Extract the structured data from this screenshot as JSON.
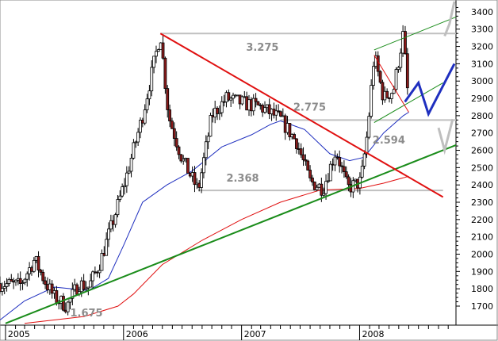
{
  "chart_data": {
    "type": "candlestick",
    "title": "",
    "xlabel": "",
    "ylabel": "",
    "x_ticks": [
      "2005",
      "2006",
      "2007",
      "2008"
    ],
    "y_ticks": [
      1700,
      1800,
      1900,
      2000,
      2100,
      2200,
      2300,
      2400,
      2500,
      2600,
      2700,
      2800,
      2900,
      3000,
      3100,
      3200,
      3300,
      3400
    ],
    "ylim": [
      1590,
      3450
    ],
    "xlim": [
      "2004-12-15",
      "2008-10-25"
    ],
    "y_axis_position": "right",
    "grid": false,
    "series": [
      {
        "kind": "candlestick",
        "up_color": "#ffffff",
        "down_color": "#8b1a1a",
        "approx_path": [
          {
            "date": "2004-12-15",
            "value": 1830
          },
          {
            "date": "2005-02-15",
            "value": 1820
          },
          {
            "date": "2005-04-01",
            "value": 1970
          },
          {
            "date": "2005-05-01",
            "value": 1850
          },
          {
            "date": "2005-06-01",
            "value": 1750
          },
          {
            "date": "2005-07-10",
            "value": 1700
          },
          {
            "date": "2005-08-15",
            "value": 1830
          },
          {
            "date": "2005-09-15",
            "value": 1810
          },
          {
            "date": "2005-10-20",
            "value": 1950
          },
          {
            "date": "2005-12-01",
            "value": 2200
          },
          {
            "date": "2006-01-10",
            "value": 2450
          },
          {
            "date": "2006-03-01",
            "value": 2800
          },
          {
            "date": "2006-04-25",
            "value": 3275
          },
          {
            "date": "2006-05-20",
            "value": 2800
          },
          {
            "date": "2006-07-01",
            "value": 2550
          },
          {
            "date": "2006-08-20",
            "value": 2368
          },
          {
            "date": "2006-10-01",
            "value": 2800
          },
          {
            "date": "2006-11-15",
            "value": 2900
          },
          {
            "date": "2007-01-10",
            "value": 2870
          },
          {
            "date": "2007-03-01",
            "value": 2850
          },
          {
            "date": "2007-05-01",
            "value": 2780
          },
          {
            "date": "2007-06-20",
            "value": 2650
          },
          {
            "date": "2007-08-01",
            "value": 2420
          },
          {
            "date": "2007-09-10",
            "value": 2380
          },
          {
            "date": "2007-10-20",
            "value": 2600
          },
          {
            "date": "2007-11-25",
            "value": 2380
          },
          {
            "date": "2008-01-05",
            "value": 2420
          },
          {
            "date": "2008-01-25",
            "value": 2700
          },
          {
            "date": "2008-02-15",
            "value": 3150
          },
          {
            "date": "2008-03-15",
            "value": 2900
          },
          {
            "date": "2008-04-15",
            "value": 2950
          },
          {
            "date": "2008-05-15",
            "value": 3275
          },
          {
            "date": "2008-06-01",
            "value": 2850
          }
        ]
      },
      {
        "kind": "moving_average",
        "color": "#1f2fbf",
        "points": [
          {
            "date": "2004-12-15",
            "value": 1620
          },
          {
            "date": "2005-03-01",
            "value": 1730
          },
          {
            "date": "2005-06-01",
            "value": 1810
          },
          {
            "date": "2005-09-15",
            "value": 1790
          },
          {
            "date": "2005-11-15",
            "value": 1860
          },
          {
            "date": "2006-01-01",
            "value": 2050
          },
          {
            "date": "2006-03-01",
            "value": 2300
          },
          {
            "date": "2006-05-15",
            "value": 2400
          },
          {
            "date": "2006-08-01",
            "value": 2480
          },
          {
            "date": "2006-11-01",
            "value": 2620
          },
          {
            "date": "2007-02-01",
            "value": 2690
          },
          {
            "date": "2007-04-01",
            "value": 2750
          },
          {
            "date": "2007-05-01",
            "value": 2770
          },
          {
            "date": "2007-07-15",
            "value": 2720
          },
          {
            "date": "2007-10-01",
            "value": 2580
          },
          {
            "date": "2007-12-01",
            "value": 2540
          },
          {
            "date": "2008-01-15",
            "value": 2560
          },
          {
            "date": "2008-03-15",
            "value": 2700
          },
          {
            "date": "2008-05-15",
            "value": 2800
          },
          {
            "date": "2008-06-01",
            "value": 2820
          }
        ]
      },
      {
        "kind": "moving_average",
        "color": "#e01010",
        "points": [
          {
            "date": "2005-03-01",
            "value": 1600
          },
          {
            "date": "2005-09-01",
            "value": 1640
          },
          {
            "date": "2005-12-15",
            "value": 1700
          },
          {
            "date": "2006-02-01",
            "value": 1770
          },
          {
            "date": "2006-05-01",
            "value": 1940
          },
          {
            "date": "2006-09-01",
            "value": 2080
          },
          {
            "date": "2007-01-01",
            "value": 2200
          },
          {
            "date": "2007-05-01",
            "value": 2300
          },
          {
            "date": "2007-09-01",
            "value": 2370
          },
          {
            "date": "2008-01-01",
            "value": 2380
          },
          {
            "date": "2008-03-15",
            "value": 2410
          },
          {
            "date": "2008-06-01",
            "value": 2450
          }
        ]
      }
    ],
    "trend_lines": [
      {
        "name": "uptrend",
        "color": "#1a8c1a",
        "from": {
          "date": "2005-01-01",
          "value": 1600
        },
        "to": {
          "date": "2008-10-25",
          "value": 2630
        }
      },
      {
        "name": "downtrend",
        "color": "#e01010",
        "from": {
          "date": "2006-04-25",
          "value": 3275
        },
        "to": {
          "date": "2008-09-15",
          "value": 2330
        }
      },
      {
        "name": "channel_upper",
        "color": "#1a8c1a",
        "from": {
          "date": "2008-02-15",
          "value": 3180
        },
        "to": {
          "date": "2008-10-25",
          "value": 3370
        }
      },
      {
        "name": "channel_lower",
        "color": "#1a8c1a",
        "from": {
          "date": "2008-02-15",
          "value": 2760
        },
        "to": {
          "date": "2008-09-15",
          "value": 2990
        }
      },
      {
        "name": "wedge_inner",
        "color": "#e01010",
        "from": {
          "date": "2008-02-15",
          "value": 3150
        },
        "to": {
          "date": "2008-06-01",
          "value": 2820
        }
      }
    ],
    "levels": [
      {
        "value": 3275,
        "label": "3.275",
        "from": "2006-04-25",
        "to": "2008-10-25",
        "color": "#c0c0c0"
      },
      {
        "value": 2775,
        "label": "2.775",
        "from": "2007-05-01",
        "to": "2008-10-25",
        "color": "#c0c0c0"
      },
      {
        "value": 2368,
        "label": "2.368",
        "from": "2006-08-20",
        "to": "2008-09-15",
        "color": "#c0c0c0"
      }
    ],
    "annotations": [
      {
        "label": "3.275"
      },
      {
        "label": "2.775"
      },
      {
        "label": "2.594"
      },
      {
        "label": "2.368"
      },
      {
        "label": "1.675"
      }
    ],
    "projection": {
      "color": "#1f2fbf",
      "points": [
        {
          "date": "2008-05-20",
          "value": 2880
        },
        {
          "date": "2008-07-01",
          "value": 2990
        },
        {
          "date": "2008-08-01",
          "value": 2810
        },
        {
          "date": "2008-10-20",
          "value": 3100
        }
      ]
    },
    "target_marks": [
      {
        "color": "#bfbfbf",
        "points": [
          {
            "date": "2008-09-20",
            "value": 3260
          },
          {
            "date": "2008-10-05",
            "value": 3330
          },
          {
            "date": "2008-10-20",
            "value": 3460
          }
        ]
      },
      {
        "color": "#bfbfbf",
        "points": [
          {
            "date": "2008-09-01",
            "value": 2730
          },
          {
            "date": "2008-09-20",
            "value": 2600
          },
          {
            "date": "2008-10-15",
            "value": 2780
          }
        ]
      }
    ]
  }
}
